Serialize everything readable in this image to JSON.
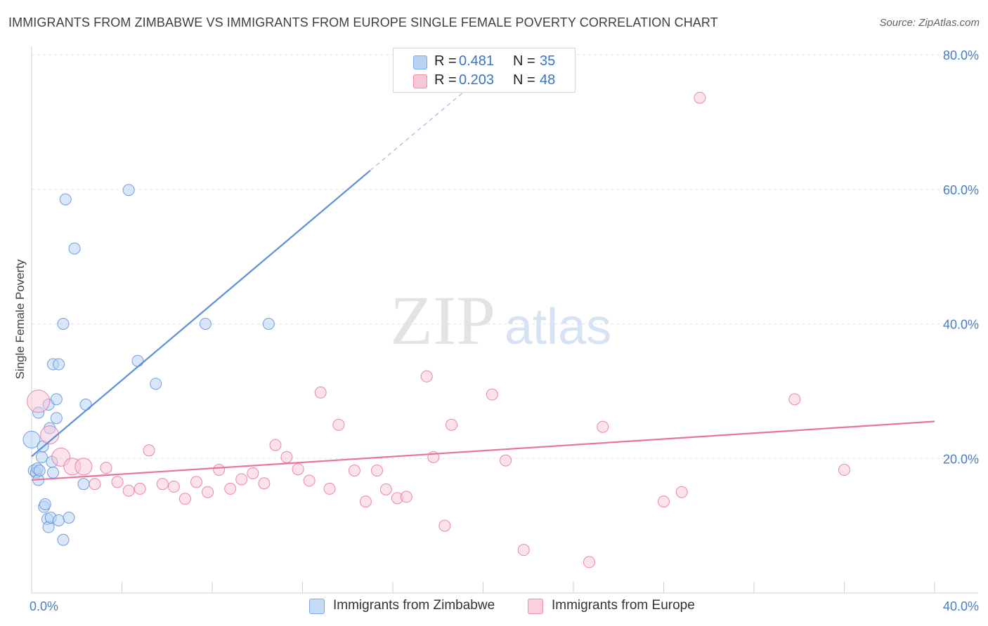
{
  "header": {
    "title": "IMMIGRANTS FROM ZIMBABWE VS IMMIGRANTS FROM EUROPE SINGLE FEMALE POVERTY CORRELATION CHART",
    "source": "Source: ZipAtlas.com"
  },
  "watermark": {
    "zip": "ZIP",
    "atlas": "atlas"
  },
  "legend": {
    "r_label": "R =",
    "n_label": "N =",
    "items": [
      {
        "r": "0.481",
        "n": "35",
        "color": "#b9d3f5",
        "border": "#7aa8e8"
      },
      {
        "r": "0.203",
        "n": "48",
        "color": "#f9c6d6",
        "border": "#f08fb0"
      }
    ]
  },
  "bottom_legend": [
    {
      "label": "Immigrants from Zimbabwe",
      "color": "#c6dbf7",
      "border": "#7aa8e8"
    },
    {
      "label": "Immigrants from Europe",
      "color": "#fbd0de",
      "border": "#f08fb0"
    }
  ],
  "chart_data": {
    "type": "scatter",
    "title": "IMMIGRANTS FROM ZIMBABWE VS IMMIGRANTS FROM EUROPE SINGLE FEMALE POVERTY CORRELATION CHART",
    "xlabel": "",
    "ylabel": "Single Female Poverty",
    "xlim": [
      0,
      40
    ],
    "ylim": [
      0,
      80
    ],
    "x_tick_labels": [
      "0.0%",
      "40.0%"
    ],
    "y_ticks": [
      20,
      40,
      60,
      80
    ],
    "y_tick_labels": [
      "20.0%",
      "40.0%",
      "60.0%",
      "80.0%"
    ],
    "grid": true,
    "series": [
      {
        "name": "Immigrants from Zimbabwe",
        "color": "#5b8fd9",
        "fill": "#b9d3f5",
        "trend": {
          "x0": 0,
          "y0": 20.3,
          "x1": 15,
          "y1": 62.8,
          "dash_to_x": 19.5,
          "dash_to_y": 75.5
        },
        "points": [
          [
            0.0,
            22.8
          ],
          [
            0.1,
            18.2
          ],
          [
            0.2,
            17.9
          ],
          [
            0.3,
            16.8
          ],
          [
            0.25,
            18.5
          ],
          [
            0.35,
            18.2
          ],
          [
            0.3,
            26.8
          ],
          [
            0.45,
            20.2
          ],
          [
            0.5,
            21.8
          ],
          [
            0.55,
            12.8
          ],
          [
            0.6,
            13.2
          ],
          [
            0.7,
            11.0
          ],
          [
            0.75,
            9.8
          ],
          [
            0.75,
            28.0
          ],
          [
            0.8,
            24.5
          ],
          [
            0.85,
            11.2
          ],
          [
            0.9,
            19.5
          ],
          [
            0.95,
            17.9
          ],
          [
            0.95,
            34.0
          ],
          [
            1.1,
            26.0
          ],
          [
            1.1,
            28.8
          ],
          [
            1.2,
            10.8
          ],
          [
            1.2,
            34.0
          ],
          [
            1.4,
            7.9
          ],
          [
            1.4,
            40.0
          ],
          [
            1.5,
            58.5
          ],
          [
            1.65,
            11.2
          ],
          [
            1.9,
            51.2
          ],
          [
            2.3,
            16.2
          ],
          [
            2.4,
            28.0
          ],
          [
            4.3,
            59.9
          ],
          [
            4.7,
            34.5
          ],
          [
            5.5,
            31.1
          ],
          [
            7.7,
            40.0
          ],
          [
            10.5,
            40.0
          ]
        ]
      },
      {
        "name": "Immigrants from Europe",
        "color": "#e8749a",
        "fill": "#f9c6d6",
        "trend": {
          "x0": 0,
          "y0": 16.8,
          "x1": 40,
          "y1": 25.5
        },
        "points": [
          [
            0.3,
            28.5
          ],
          [
            0.8,
            23.5
          ],
          [
            1.3,
            20.2
          ],
          [
            1.8,
            18.8
          ],
          [
            2.3,
            18.8
          ],
          [
            2.8,
            16.2
          ],
          [
            3.3,
            18.6
          ],
          [
            3.8,
            16.5
          ],
          [
            4.3,
            15.2
          ],
          [
            4.8,
            15.5
          ],
          [
            5.2,
            21.2
          ],
          [
            5.8,
            16.2
          ],
          [
            6.3,
            15.8
          ],
          [
            6.8,
            14.0
          ],
          [
            7.3,
            16.5
          ],
          [
            7.8,
            15.0
          ],
          [
            8.3,
            18.3
          ],
          [
            8.8,
            15.5
          ],
          [
            9.3,
            16.9
          ],
          [
            9.8,
            17.8
          ],
          [
            10.3,
            16.3
          ],
          [
            10.8,
            22.0
          ],
          [
            11.3,
            20.2
          ],
          [
            11.8,
            18.4
          ],
          [
            12.3,
            16.7
          ],
          [
            12.8,
            29.8
          ],
          [
            13.2,
            15.5
          ],
          [
            13.6,
            25.0
          ],
          [
            14.3,
            18.2
          ],
          [
            14.8,
            13.6
          ],
          [
            15.3,
            18.2
          ],
          [
            15.7,
            15.4
          ],
          [
            16.2,
            14.1
          ],
          [
            16.6,
            14.3
          ],
          [
            17.8,
            20.2
          ],
          [
            17.5,
            32.2
          ],
          [
            18.3,
            10.0
          ],
          [
            18.6,
            25.0
          ],
          [
            20.4,
            29.5
          ],
          [
            21.0,
            19.7
          ],
          [
            21.8,
            6.4
          ],
          [
            24.7,
            4.6
          ],
          [
            25.3,
            24.7
          ],
          [
            28.0,
            13.6
          ],
          [
            28.8,
            15.0
          ],
          [
            29.6,
            73.6
          ],
          [
            33.8,
            28.8
          ],
          [
            36.0,
            18.3
          ]
        ]
      }
    ]
  }
}
